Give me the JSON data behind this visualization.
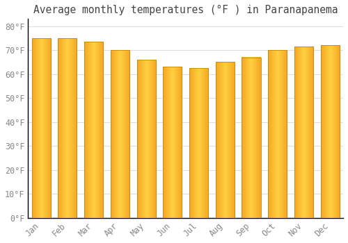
{
  "title": "Average monthly temperatures (°F ) in Paranapanema",
  "months": [
    "Jan",
    "Feb",
    "Mar",
    "Apr",
    "May",
    "Jun",
    "Jul",
    "Aug",
    "Sep",
    "Oct",
    "Nov",
    "Dec"
  ],
  "values": [
    75,
    75,
    73.5,
    70,
    66,
    63,
    62.5,
    65,
    67,
    70,
    71.5,
    72
  ],
  "bar_color_left": "#F5A623",
  "bar_color_center": "#FFD040",
  "bar_color_right": "#F5A623",
  "background_color": "#FFFFFF",
  "grid_color": "#DDDDDD",
  "yticks": [
    0,
    10,
    20,
    30,
    40,
    50,
    60,
    70,
    80
  ],
  "ylim": [
    0,
    83
  ],
  "title_fontsize": 10.5,
  "tick_fontsize": 8.5,
  "bar_width": 0.72
}
